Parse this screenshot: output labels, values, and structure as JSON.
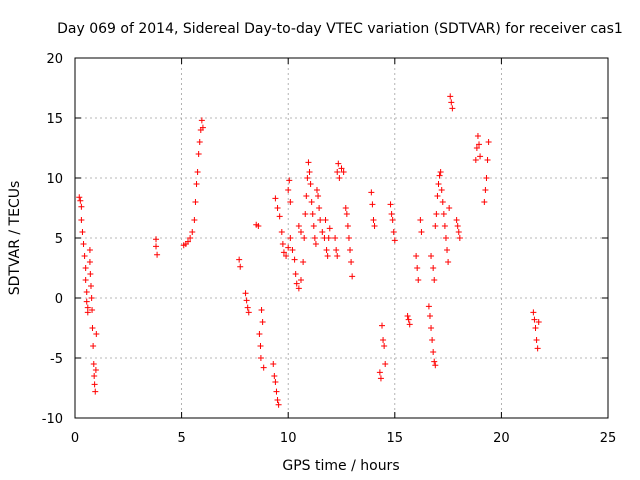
{
  "chart_data": {
    "type": "scatter",
    "title": "Day 069 of 2014, Sidereal Day-to-day VTEC variation (SDTVAR) for receiver cas1",
    "xlabel": "GPS time / hours",
    "ylabel": "SDTVAR / TECUs",
    "xlim": [
      0,
      25
    ],
    "ylim": [
      -10,
      20
    ],
    "xticks": [
      "0",
      "5",
      "10",
      "15",
      "20",
      "25"
    ],
    "yticks": [
      "-10",
      "-5",
      "0",
      "5",
      "10",
      "15",
      "20"
    ],
    "grid": true,
    "marker": "+",
    "color": "#ff0000",
    "series": [
      {
        "name": "cas1",
        "points": [
          [
            0.2,
            8.4
          ],
          [
            0.25,
            8.1
          ],
          [
            0.3,
            7.6
          ],
          [
            0.3,
            6.5
          ],
          [
            0.35,
            5.5
          ],
          [
            0.4,
            4.5
          ],
          [
            0.45,
            3.5
          ],
          [
            0.5,
            2.5
          ],
          [
            0.5,
            1.5
          ],
          [
            0.55,
            0.5
          ],
          [
            0.55,
            -0.3
          ],
          [
            0.6,
            -0.8
          ],
          [
            0.6,
            -1.2
          ],
          [
            0.7,
            4.0
          ],
          [
            0.7,
            3.0
          ],
          [
            0.72,
            2.0
          ],
          [
            0.75,
            1.0
          ],
          [
            0.78,
            0.0
          ],
          [
            0.8,
            -1.0
          ],
          [
            0.82,
            -2.5
          ],
          [
            0.85,
            -4.0
          ],
          [
            0.88,
            -5.5
          ],
          [
            0.9,
            -6.5
          ],
          [
            0.92,
            -7.2
          ],
          [
            0.95,
            -7.8
          ],
          [
            0.98,
            -6.0
          ],
          [
            1.0,
            -3.0
          ],
          [
            3.8,
            4.9
          ],
          [
            3.8,
            4.3
          ],
          [
            3.85,
            3.6
          ],
          [
            5.1,
            4.4
          ],
          [
            5.2,
            4.5
          ],
          [
            5.3,
            4.7
          ],
          [
            5.4,
            5.0
          ],
          [
            5.5,
            5.5
          ],
          [
            5.6,
            6.5
          ],
          [
            5.65,
            8.0
          ],
          [
            5.7,
            9.5
          ],
          [
            5.75,
            10.5
          ],
          [
            5.8,
            12.0
          ],
          [
            5.85,
            13.0
          ],
          [
            5.9,
            14.0
          ],
          [
            5.95,
            14.8
          ],
          [
            6.0,
            14.2
          ],
          [
            7.7,
            3.2
          ],
          [
            7.75,
            2.6
          ],
          [
            8.0,
            0.4
          ],
          [
            8.05,
            -0.2
          ],
          [
            8.1,
            -0.8
          ],
          [
            8.15,
            -1.2
          ],
          [
            8.5,
            6.1
          ],
          [
            8.6,
            6.0
          ],
          [
            8.65,
            -3.0
          ],
          [
            8.7,
            -4.0
          ],
          [
            8.72,
            -5.0
          ],
          [
            8.75,
            -1.0
          ],
          [
            8.8,
            -2.0
          ],
          [
            8.85,
            -5.8
          ],
          [
            9.3,
            -5.5
          ],
          [
            9.35,
            -6.5
          ],
          [
            9.4,
            -7.0
          ],
          [
            9.45,
            -7.8
          ],
          [
            9.5,
            -8.5
          ],
          [
            9.55,
            -8.9
          ],
          [
            9.4,
            8.3
          ],
          [
            9.5,
            7.5
          ],
          [
            9.6,
            6.8
          ],
          [
            9.7,
            5.5
          ],
          [
            9.75,
            4.5
          ],
          [
            9.8,
            3.8
          ],
          [
            9.9,
            3.5
          ],
          [
            10.0,
            4.2
          ],
          [
            10.0,
            9.0
          ],
          [
            10.05,
            9.8
          ],
          [
            10.1,
            8.0
          ],
          [
            10.1,
            5.0
          ],
          [
            10.2,
            4.0
          ],
          [
            10.3,
            3.2
          ],
          [
            10.35,
            2.0
          ],
          [
            10.4,
            1.2
          ],
          [
            10.5,
            0.8
          ],
          [
            10.5,
            6.0
          ],
          [
            10.6,
            5.5
          ],
          [
            10.6,
            1.5
          ],
          [
            10.7,
            3.0
          ],
          [
            10.75,
            5.0
          ],
          [
            10.8,
            7.0
          ],
          [
            10.85,
            8.5
          ],
          [
            10.9,
            10.0
          ],
          [
            10.95,
            11.3
          ],
          [
            11.0,
            10.5
          ],
          [
            11.05,
            9.5
          ],
          [
            11.1,
            8.0
          ],
          [
            11.15,
            7.0
          ],
          [
            11.2,
            6.0
          ],
          [
            11.25,
            5.0
          ],
          [
            11.3,
            4.5
          ],
          [
            11.35,
            9.0
          ],
          [
            11.4,
            8.5
          ],
          [
            11.45,
            7.5
          ],
          [
            11.5,
            6.5
          ],
          [
            11.6,
            5.5
          ],
          [
            11.7,
            5.0
          ],
          [
            11.75,
            6.5
          ],
          [
            11.8,
            4.0
          ],
          [
            11.85,
            3.5
          ],
          [
            11.9,
            5.0
          ],
          [
            11.95,
            5.8
          ],
          [
            12.2,
            5.0
          ],
          [
            12.25,
            4.0
          ],
          [
            12.3,
            3.5
          ],
          [
            12.3,
            10.5
          ],
          [
            12.35,
            11.2
          ],
          [
            12.4,
            10.0
          ],
          [
            12.5,
            10.8
          ],
          [
            12.6,
            10.5
          ],
          [
            12.7,
            7.5
          ],
          [
            12.75,
            7.0
          ],
          [
            12.8,
            6.0
          ],
          [
            12.85,
            5.0
          ],
          [
            12.9,
            4.0
          ],
          [
            12.95,
            3.0
          ],
          [
            13.0,
            1.8
          ],
          [
            13.9,
            8.8
          ],
          [
            13.95,
            7.8
          ],
          [
            14.0,
            6.5
          ],
          [
            14.05,
            6.0
          ],
          [
            14.3,
            -6.2
          ],
          [
            14.35,
            -6.7
          ],
          [
            14.4,
            -2.3
          ],
          [
            14.45,
            -3.5
          ],
          [
            14.5,
            -4.0
          ],
          [
            14.55,
            -5.5
          ],
          [
            14.8,
            7.8
          ],
          [
            14.85,
            7.0
          ],
          [
            14.9,
            6.5
          ],
          [
            14.95,
            5.5
          ],
          [
            15.0,
            4.8
          ],
          [
            15.6,
            -1.5
          ],
          [
            15.65,
            -1.8
          ],
          [
            15.7,
            -2.2
          ],
          [
            16.0,
            3.5
          ],
          [
            16.05,
            2.5
          ],
          [
            16.1,
            1.5
          ],
          [
            16.2,
            6.5
          ],
          [
            16.25,
            5.5
          ],
          [
            16.6,
            -0.7
          ],
          [
            16.65,
            -1.5
          ],
          [
            16.7,
            -2.5
          ],
          [
            16.75,
            -3.5
          ],
          [
            16.8,
            -4.5
          ],
          [
            16.85,
            -5.3
          ],
          [
            16.9,
            -5.6
          ],
          [
            16.7,
            3.5
          ],
          [
            16.8,
            2.5
          ],
          [
            16.85,
            1.5
          ],
          [
            16.9,
            6.0
          ],
          [
            16.95,
            7.0
          ],
          [
            17.0,
            8.5
          ],
          [
            17.05,
            9.5
          ],
          [
            17.1,
            10.2
          ],
          [
            17.15,
            10.5
          ],
          [
            17.2,
            9.0
          ],
          [
            17.25,
            8.0
          ],
          [
            17.3,
            7.0
          ],
          [
            17.35,
            6.0
          ],
          [
            17.4,
            5.0
          ],
          [
            17.45,
            4.0
          ],
          [
            17.5,
            3.0
          ],
          [
            17.55,
            7.5
          ],
          [
            17.6,
            16.8
          ],
          [
            17.65,
            16.3
          ],
          [
            17.7,
            15.8
          ],
          [
            17.9,
            6.5
          ],
          [
            17.95,
            6.0
          ],
          [
            18.0,
            5.5
          ],
          [
            18.05,
            5.0
          ],
          [
            18.8,
            11.5
          ],
          [
            18.85,
            12.5
          ],
          [
            18.9,
            13.5
          ],
          [
            18.95,
            12.8
          ],
          [
            19.0,
            11.8
          ],
          [
            19.2,
            8.0
          ],
          [
            19.25,
            9.0
          ],
          [
            19.3,
            10.0
          ],
          [
            19.35,
            11.5
          ],
          [
            19.4,
            13.0
          ],
          [
            21.5,
            -1.2
          ],
          [
            21.55,
            -1.8
          ],
          [
            21.6,
            -2.5
          ],
          [
            21.65,
            -3.5
          ],
          [
            21.7,
            -4.2
          ],
          [
            21.75,
            -2.0
          ]
        ]
      }
    ]
  }
}
